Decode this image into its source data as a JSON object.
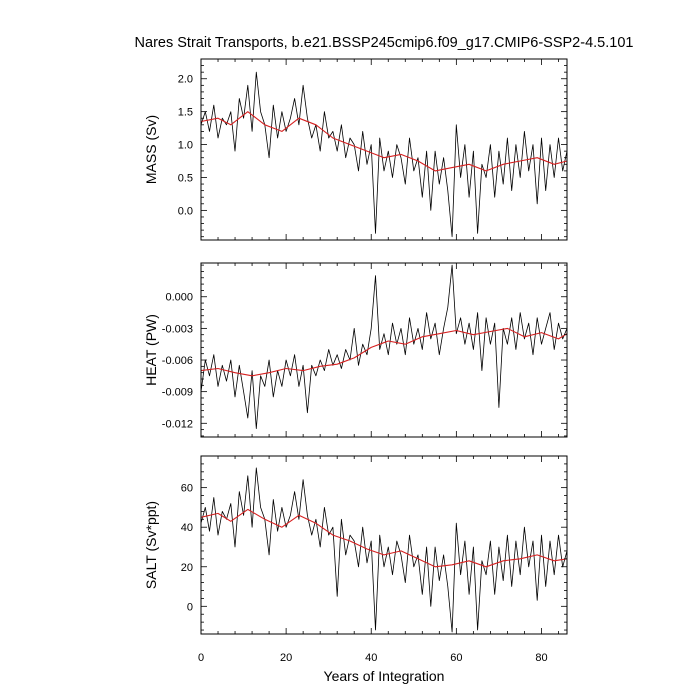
{
  "chart_data": {
    "type": "line",
    "title": "Nares Strait Transports, b.e21.BSSP245cmip6.f09_g17.CMIP6-SSP2-4.5.101",
    "xlabel": "Years of Integration",
    "xlim": [
      0,
      86
    ],
    "xticks": [
      0,
      20,
      40,
      60,
      80
    ],
    "xtick_labels": [
      "0",
      "20",
      "40",
      "60",
      "80"
    ],
    "colors": {
      "raw": "#000000",
      "smoothed": "#d62020"
    },
    "panels": [
      {
        "ylabel": "MASS (Sv)",
        "ylim": [
          -0.45,
          2.3
        ],
        "yticks": [
          0.0,
          0.5,
          1.0,
          1.5,
          2.0
        ],
        "ytick_labels": [
          "0.0",
          "0.5",
          "1.0",
          "1.5",
          "2.0"
        ],
        "smoothed": {
          "x": [
            0,
            4,
            7,
            11,
            15,
            19,
            23,
            27,
            31,
            35,
            39,
            43,
            47,
            51,
            55,
            59,
            63,
            67,
            71,
            75,
            79,
            83,
            86
          ],
          "y": [
            1.35,
            1.4,
            1.3,
            1.5,
            1.3,
            1.2,
            1.4,
            1.3,
            1.1,
            1.0,
            0.9,
            0.8,
            0.85,
            0.75,
            0.6,
            0.65,
            0.7,
            0.6,
            0.7,
            0.75,
            0.8,
            0.7,
            0.75
          ]
        },
        "raw": {
          "x": [
            0,
            1,
            2,
            3,
            4,
            5,
            6,
            7,
            8,
            9,
            10,
            11,
            12,
            13,
            14,
            15,
            16,
            17,
            18,
            19,
            20,
            21,
            22,
            23,
            24,
            25,
            26,
            27,
            28,
            29,
            30,
            31,
            32,
            33,
            34,
            35,
            36,
            37,
            38,
            39,
            40,
            41,
            42,
            43,
            44,
            45,
            46,
            47,
            48,
            49,
            50,
            51,
            52,
            53,
            54,
            55,
            56,
            57,
            58,
            59,
            60,
            61,
            62,
            63,
            64,
            65,
            66,
            67,
            68,
            69,
            70,
            71,
            72,
            73,
            74,
            75,
            76,
            77,
            78,
            79,
            80,
            81,
            82,
            83,
            84,
            85,
            86
          ],
          "y": [
            1.3,
            1.5,
            1.2,
            1.6,
            1.1,
            1.4,
            1.3,
            1.5,
            0.9,
            1.7,
            1.4,
            1.9,
            1.2,
            2.1,
            1.5,
            1.3,
            0.8,
            1.6,
            1.1,
            1.5,
            1.2,
            1.4,
            1.7,
            1.3,
            1.9,
            1.4,
            1.1,
            1.3,
            0.9,
            1.5,
            1.1,
            1.2,
            0.9,
            1.3,
            0.8,
            1.1,
            1.0,
            0.6,
            1.2,
            0.7,
            1.0,
            -0.35,
            1.1,
            0.6,
            0.9,
            0.5,
            1.0,
            0.8,
            0.4,
            1.1,
            0.6,
            0.8,
            0.2,
            0.9,
            0.0,
            0.9,
            0.4,
            0.8,
            0.3,
            -0.4,
            1.3,
            0.5,
            1.0,
            0.2,
            0.9,
            -0.35,
            0.7,
            0.5,
            1.0,
            0.2,
            0.9,
            0.4,
            1.1,
            0.3,
            1.0,
            0.5,
            1.2,
            0.6,
            1.0,
            0.1,
            1.1,
            0.3,
            1.0,
            0.5,
            1.1,
            0.6,
            0.9
          ]
        }
      },
      {
        "ylabel": "HEAT (PW)",
        "ylim": [
          -0.0133,
          0.0032
        ],
        "yticks": [
          -0.012,
          -0.009,
          -0.006,
          -0.003,
          0.0
        ],
        "ytick_labels": [
          "-0.012",
          "-0.009",
          "-0.006",
          "-0.003",
          "0.000"
        ],
        "smoothed": {
          "x": [
            0,
            4,
            8,
            12,
            16,
            20,
            24,
            28,
            32,
            36,
            40,
            44,
            48,
            52,
            56,
            60,
            64,
            68,
            72,
            76,
            80,
            84,
            86
          ],
          "y": [
            -0.007,
            -0.0068,
            -0.0072,
            -0.0075,
            -0.0072,
            -0.0068,
            -0.007,
            -0.0066,
            -0.0064,
            -0.0058,
            -0.0048,
            -0.0042,
            -0.0045,
            -0.0038,
            -0.0035,
            -0.0032,
            -0.0036,
            -0.0033,
            -0.003,
            -0.0038,
            -0.0034,
            -0.004,
            -0.0035
          ]
        },
        "raw": {
          "x": [
            0,
            1,
            2,
            3,
            4,
            5,
            6,
            7,
            8,
            9,
            10,
            11,
            12,
            13,
            14,
            15,
            16,
            17,
            18,
            19,
            20,
            21,
            22,
            23,
            24,
            25,
            26,
            27,
            28,
            29,
            30,
            31,
            32,
            33,
            34,
            35,
            36,
            37,
            38,
            39,
            40,
            41,
            42,
            43,
            44,
            45,
            46,
            47,
            48,
            49,
            50,
            51,
            52,
            53,
            54,
            55,
            56,
            57,
            58,
            59,
            60,
            61,
            62,
            63,
            64,
            65,
            66,
            67,
            68,
            69,
            70,
            71,
            72,
            73,
            74,
            75,
            76,
            77,
            78,
            79,
            80,
            81,
            82,
            83,
            84,
            85,
            86
          ],
          "y": [
            -0.009,
            -0.006,
            -0.0075,
            -0.0055,
            -0.0085,
            -0.0065,
            -0.008,
            -0.006,
            -0.0095,
            -0.0065,
            -0.009,
            -0.0115,
            -0.007,
            -0.0125,
            -0.0075,
            -0.0085,
            -0.006,
            -0.0095,
            -0.007,
            -0.0085,
            -0.006,
            -0.0075,
            -0.0055,
            -0.0085,
            -0.0065,
            -0.011,
            -0.0065,
            -0.0075,
            -0.006,
            -0.007,
            -0.005,
            -0.0065,
            -0.0055,
            -0.0068,
            -0.005,
            -0.006,
            -0.003,
            -0.0065,
            -0.0045,
            -0.0055,
            -0.003,
            0.002,
            -0.005,
            -0.0035,
            -0.0055,
            -0.0025,
            -0.0045,
            -0.003,
            -0.0055,
            -0.002,
            -0.0045,
            -0.003,
            -0.005,
            -0.0015,
            -0.004,
            -0.0025,
            -0.0055,
            -0.003,
            -0.001,
            0.003,
            -0.0035,
            -0.002,
            -0.0045,
            -0.0025,
            -0.005,
            -0.0015,
            -0.007,
            -0.002,
            -0.0045,
            -0.0025,
            -0.0105,
            -0.003,
            -0.0045,
            -0.002,
            -0.005,
            -0.0015,
            -0.004,
            -0.0025,
            -0.0055,
            -0.002,
            -0.0045,
            -0.003,
            -0.0015,
            -0.005,
            -0.0025,
            -0.004,
            -0.003
          ]
        }
      },
      {
        "ylabel": "SALT (Sv*ppt)",
        "ylim": [
          -14,
          76
        ],
        "yticks": [
          0,
          20,
          40,
          60
        ],
        "ytick_labels": [
          "0",
          "20",
          "40",
          "60"
        ],
        "smoothed": {
          "x": [
            0,
            4,
            7,
            11,
            15,
            19,
            23,
            27,
            31,
            35,
            39,
            43,
            47,
            51,
            55,
            59,
            63,
            67,
            71,
            75,
            79,
            83,
            86
          ],
          "y": [
            45,
            47,
            43,
            49,
            44,
            40,
            46,
            42,
            36,
            33,
            29,
            26,
            28,
            24,
            20,
            21,
            23,
            20,
            23,
            24,
            26,
            23,
            24
          ]
        },
        "raw": {
          "x": [
            0,
            1,
            2,
            3,
            4,
            5,
            6,
            7,
            8,
            9,
            10,
            11,
            12,
            13,
            14,
            15,
            16,
            17,
            18,
            19,
            20,
            21,
            22,
            23,
            24,
            25,
            26,
            27,
            28,
            29,
            30,
            31,
            32,
            33,
            34,
            35,
            36,
            37,
            38,
            39,
            40,
            41,
            42,
            43,
            44,
            45,
            46,
            47,
            48,
            49,
            50,
            51,
            52,
            53,
            54,
            55,
            56,
            57,
            58,
            59,
            60,
            61,
            62,
            63,
            64,
            65,
            66,
            67,
            68,
            69,
            70,
            71,
            72,
            73,
            74,
            75,
            76,
            77,
            78,
            79,
            80,
            81,
            82,
            83,
            84,
            85,
            86
          ],
          "y": [
            42,
            50,
            38,
            55,
            36,
            48,
            44,
            52,
            30,
            58,
            46,
            66,
            40,
            70,
            50,
            44,
            26,
            54,
            38,
            50,
            40,
            46,
            58,
            44,
            64,
            46,
            36,
            44,
            30,
            50,
            36,
            40,
            5,
            44,
            26,
            36,
            33,
            20,
            40,
            22,
            33,
            -12,
            36,
            20,
            30,
            16,
            33,
            26,
            12,
            36,
            20,
            26,
            6,
            30,
            0,
            30,
            13,
            26,
            10,
            -13,
            42,
            16,
            33,
            6,
            30,
            -12,
            23,
            16,
            33,
            6,
            30,
            13,
            36,
            10,
            33,
            16,
            40,
            20,
            33,
            3,
            36,
            10,
            33,
            16,
            36,
            20,
            28
          ]
        }
      }
    ]
  }
}
